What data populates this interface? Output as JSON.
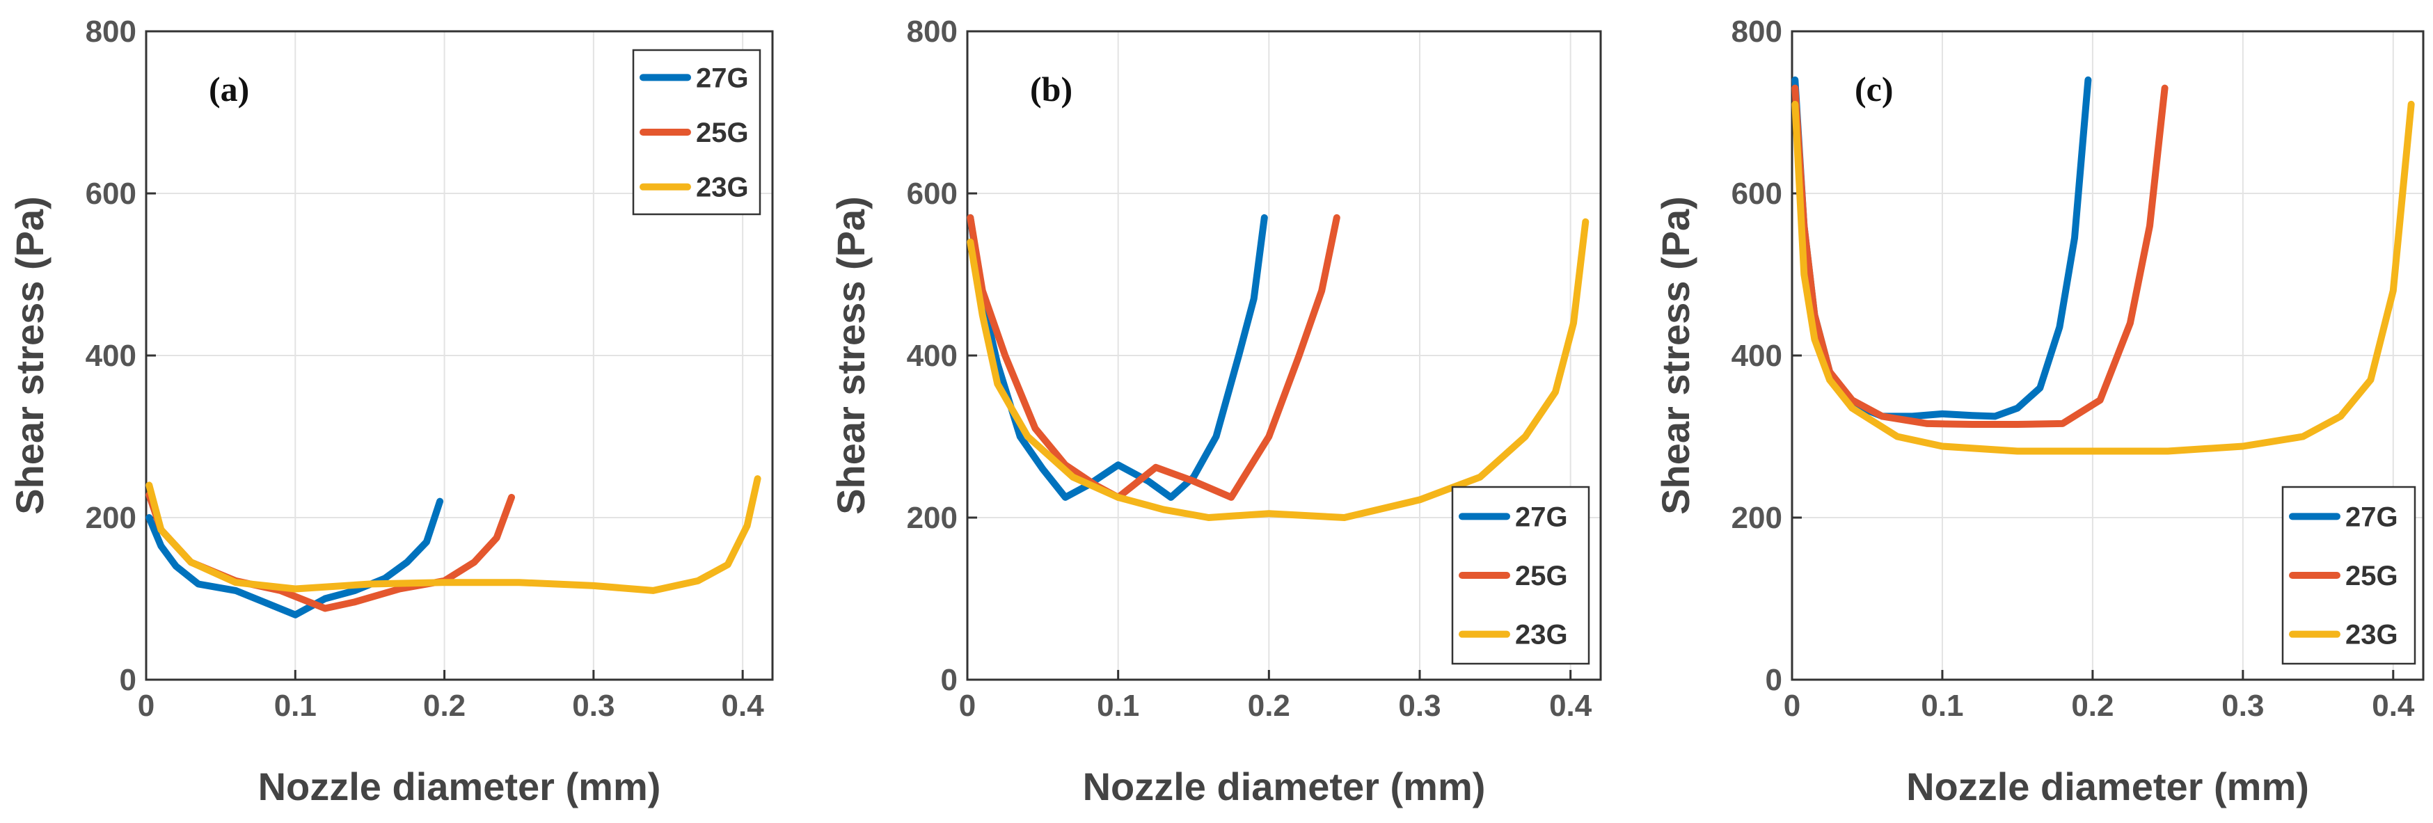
{
  "colors": {
    "27G": "#0072BD",
    "25G": "#E4572E",
    "23G": "#F5B51A"
  },
  "chart_data": [
    {
      "type": "line",
      "panel_label": "(a)",
      "xlabel": "Nozzle diameter (mm)",
      "ylabel": "Shear stress (Pa)",
      "xlim": [
        0,
        0.42
      ],
      "ylim": [
        0,
        800
      ],
      "xticks": [
        0,
        0.1,
        0.2,
        0.3,
        0.4
      ],
      "xtick_labels": [
        "0",
        "0.1",
        "0.2",
        "0.3",
        "0.4"
      ],
      "yticks": [
        0,
        200,
        400,
        600,
        800
      ],
      "ytick_labels": [
        "0",
        "200",
        "400",
        "600",
        "800"
      ],
      "grid": true,
      "legend_position": "top-right",
      "series": [
        {
          "name": "27G",
          "x": [
            0.002,
            0.01,
            0.02,
            0.035,
            0.06,
            0.08,
            0.1,
            0.12,
            0.14,
            0.16,
            0.175,
            0.188,
            0.197
          ],
          "y": [
            200,
            165,
            140,
            118,
            110,
            95,
            80,
            100,
            110,
            125,
            145,
            170,
            220
          ]
        },
        {
          "name": "25G",
          "x": [
            0.002,
            0.01,
            0.03,
            0.06,
            0.09,
            0.12,
            0.14,
            0.17,
            0.2,
            0.22,
            0.235,
            0.245
          ],
          "y": [
            228,
            185,
            145,
            122,
            110,
            88,
            96,
            112,
            122,
            145,
            175,
            225
          ]
        },
        {
          "name": "23G",
          "x": [
            0.002,
            0.01,
            0.03,
            0.06,
            0.1,
            0.15,
            0.2,
            0.25,
            0.3,
            0.34,
            0.37,
            0.39,
            0.403,
            0.41
          ],
          "y": [
            240,
            185,
            145,
            120,
            112,
            118,
            120,
            120,
            116,
            110,
            122,
            142,
            190,
            248
          ]
        }
      ]
    },
    {
      "type": "line",
      "panel_label": "(b)",
      "xlabel": "Nozzle diameter (mm)",
      "ylabel": "Shear stress (Pa)",
      "xlim": [
        0,
        0.42
      ],
      "ylim": [
        0,
        800
      ],
      "xticks": [
        0,
        0.1,
        0.2,
        0.3,
        0.4
      ],
      "xtick_labels": [
        "0",
        "0.1",
        "0.2",
        "0.3",
        "0.4"
      ],
      "yticks": [
        0,
        200,
        400,
        600,
        800
      ],
      "ytick_labels": [
        "0",
        "200",
        "400",
        "600",
        "800"
      ],
      "grid": true,
      "legend_position": "bottom-right",
      "series": [
        {
          "name": "27G",
          "x": [
            0.002,
            0.01,
            0.02,
            0.035,
            0.05,
            0.065,
            0.08,
            0.1,
            0.12,
            0.135,
            0.15,
            0.165,
            0.18,
            0.19,
            0.197
          ],
          "y": [
            570,
            470,
            390,
            300,
            260,
            225,
            240,
            265,
            245,
            225,
            250,
            300,
            400,
            470,
            570
          ]
        },
        {
          "name": "25G",
          "x": [
            0.002,
            0.01,
            0.025,
            0.045,
            0.065,
            0.085,
            0.1,
            0.125,
            0.15,
            0.175,
            0.2,
            0.22,
            0.235,
            0.245
          ],
          "y": [
            570,
            480,
            400,
            310,
            265,
            240,
            225,
            262,
            245,
            225,
            300,
            400,
            480,
            570
          ]
        },
        {
          "name": "23G",
          "x": [
            0.002,
            0.01,
            0.02,
            0.04,
            0.07,
            0.1,
            0.13,
            0.16,
            0.2,
            0.25,
            0.3,
            0.34,
            0.37,
            0.39,
            0.402,
            0.41
          ],
          "y": [
            540,
            450,
            365,
            300,
            250,
            225,
            210,
            200,
            205,
            200,
            222,
            250,
            300,
            355,
            440,
            565
          ]
        }
      ]
    },
    {
      "type": "line",
      "panel_label": "(c)",
      "xlabel": "Nozzle diameter (mm)",
      "ylabel": "Shear stress (Pa)",
      "xlim": [
        0,
        0.42
      ],
      "ylim": [
        0,
        800
      ],
      "xticks": [
        0,
        0.1,
        0.2,
        0.3,
        0.4
      ],
      "xtick_labels": [
        "0",
        "0.1",
        "0.2",
        "0.3",
        "0.4"
      ],
      "yticks": [
        0,
        200,
        400,
        600,
        800
      ],
      "ytick_labels": [
        "0",
        "200",
        "400",
        "600",
        "800"
      ],
      "grid": true,
      "legend_position": "bottom-right",
      "series": [
        {
          "name": "27G",
          "x": [
            0.002,
            0.008,
            0.015,
            0.025,
            0.04,
            0.06,
            0.08,
            0.1,
            0.12,
            0.135,
            0.15,
            0.165,
            0.178,
            0.188,
            0.197
          ],
          "y": [
            740,
            560,
            450,
            380,
            340,
            325,
            325,
            328,
            326,
            325,
            335,
            360,
            435,
            545,
            740
          ]
        },
        {
          "name": "25G",
          "x": [
            0.002,
            0.008,
            0.015,
            0.025,
            0.04,
            0.06,
            0.09,
            0.12,
            0.15,
            0.18,
            0.205,
            0.225,
            0.238,
            0.248
          ],
          "y": [
            730,
            560,
            450,
            380,
            345,
            325,
            316,
            315,
            315,
            316,
            345,
            440,
            560,
            730
          ]
        },
        {
          "name": "23G",
          "x": [
            0.002,
            0.008,
            0.015,
            0.025,
            0.04,
            0.07,
            0.1,
            0.15,
            0.2,
            0.25,
            0.3,
            0.34,
            0.365,
            0.385,
            0.4,
            0.412
          ],
          "y": [
            710,
            500,
            420,
            370,
            335,
            300,
            288,
            282,
            282,
            282,
            288,
            300,
            325,
            370,
            480,
            710
          ]
        }
      ]
    }
  ]
}
